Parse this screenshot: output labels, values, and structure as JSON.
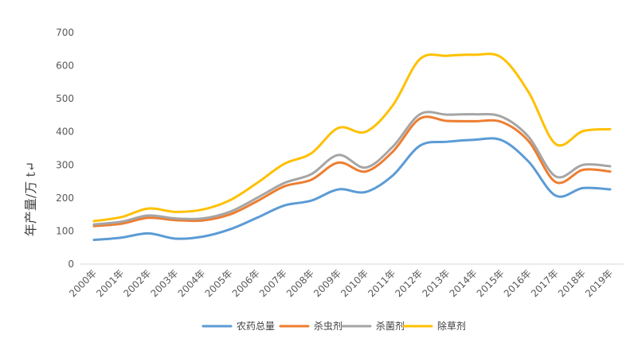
{
  "chart_data": {
    "type": "line",
    "title": "",
    "xlabel": "",
    "ylabel": "年产量/万 t↵",
    "ylim": [
      0,
      700
    ],
    "yticks": [
      0,
      100,
      200,
      300,
      400,
      500,
      600,
      700
    ],
    "grid": false,
    "legend_position": "bottom",
    "categories": [
      "2000年",
      "2001年",
      "2002年",
      "2003年",
      "2004年",
      "2005年",
      "2006年",
      "2007年",
      "2008年",
      "2009年",
      "2010年",
      "2011年",
      "2012年",
      "2013年",
      "2014年",
      "2015年",
      "2016年",
      "2017年",
      "2018年",
      "2019年"
    ],
    "series": [
      {
        "name": "农药总量",
        "color": "#5B9BD5",
        "values": [
          73,
          80,
          93,
          77,
          83,
          105,
          140,
          177,
          192,
          226,
          218,
          268,
          358,
          370,
          376,
          375,
          310,
          207,
          230,
          226
        ]
      },
      {
        "name": "杀虫剂",
        "color": "#ED7D31",
        "values": [
          115,
          122,
          140,
          133,
          132,
          150,
          190,
          235,
          255,
          307,
          280,
          340,
          440,
          433,
          432,
          430,
          372,
          248,
          285,
          280
        ]
      },
      {
        "name": "杀菌剂",
        "color": "#A5A5A5",
        "values": [
          120,
          128,
          147,
          138,
          138,
          158,
          200,
          245,
          272,
          330,
          292,
          355,
          453,
          452,
          453,
          446,
          385,
          265,
          300,
          296
        ]
      },
      {
        "name": "除草剂",
        "color": "#FFC000",
        "values": [
          130,
          142,
          168,
          158,
          165,
          193,
          245,
          303,
          335,
          412,
          400,
          480,
          620,
          630,
          633,
          625,
          520,
          363,
          402,
          408
        ]
      }
    ]
  }
}
